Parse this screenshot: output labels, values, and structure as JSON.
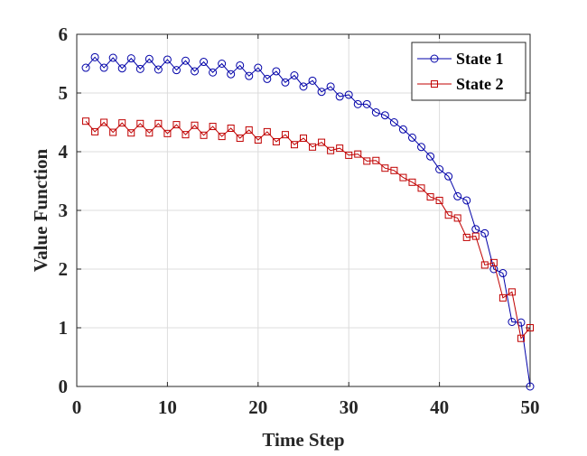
{
  "chart_data": {
    "type": "line",
    "title": "",
    "xlabel": "Time Step",
    "ylabel": "Value Function",
    "xlim": [
      0,
      50
    ],
    "ylim": [
      0,
      6
    ],
    "xticks": [
      0,
      10,
      20,
      30,
      40,
      50
    ],
    "yticks": [
      0,
      1,
      2,
      3,
      4,
      5,
      6
    ],
    "grid": true,
    "legend_position": "top-right",
    "x": [
      1,
      2,
      3,
      4,
      5,
      6,
      7,
      8,
      9,
      10,
      11,
      12,
      13,
      14,
      15,
      16,
      17,
      18,
      19,
      20,
      21,
      22,
      23,
      24,
      25,
      26,
      27,
      28,
      29,
      30,
      31,
      32,
      33,
      34,
      35,
      36,
      37,
      38,
      39,
      40,
      41,
      42,
      43,
      44,
      45,
      46,
      47,
      48,
      49,
      50
    ],
    "series": [
      {
        "name": "State 1",
        "color": "#0000a8",
        "marker": "circle",
        "values": [
          5.43,
          5.61,
          5.43,
          5.6,
          5.42,
          5.59,
          5.41,
          5.58,
          5.4,
          5.57,
          5.39,
          5.55,
          5.37,
          5.53,
          5.35,
          5.5,
          5.32,
          5.47,
          5.29,
          5.43,
          5.24,
          5.37,
          5.18,
          5.3,
          5.11,
          5.21,
          5.02,
          5.11,
          4.94,
          4.97,
          4.81,
          4.81,
          4.67,
          4.62,
          4.5,
          4.38,
          4.24,
          4.08,
          3.92,
          3.7,
          3.58,
          3.24,
          3.17,
          2.68,
          2.61,
          2.0,
          1.93,
          1.1,
          1.09,
          0.0
        ]
      },
      {
        "name": "State 2",
        "color": "#c00000",
        "marker": "square",
        "values": [
          4.52,
          4.34,
          4.5,
          4.33,
          4.49,
          4.32,
          4.48,
          4.32,
          4.48,
          4.31,
          4.46,
          4.29,
          4.45,
          4.28,
          4.43,
          4.26,
          4.4,
          4.23,
          4.37,
          4.2,
          4.34,
          4.17,
          4.29,
          4.12,
          4.23,
          4.08,
          4.16,
          4.02,
          4.06,
          3.94,
          3.96,
          3.84,
          3.85,
          3.72,
          3.68,
          3.56,
          3.48,
          3.38,
          3.23,
          3.17,
          2.92,
          2.87,
          2.54,
          2.56,
          2.07,
          2.11,
          1.51,
          1.61,
          0.82,
          1.0
        ]
      }
    ]
  }
}
